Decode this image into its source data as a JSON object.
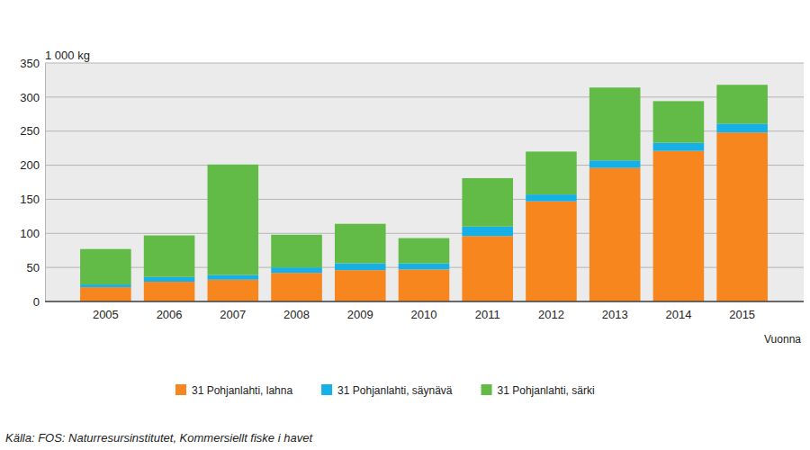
{
  "chart_data": {
    "type": "bar",
    "stacked": true,
    "y_label": "1 000 kg",
    "x_label": "Vuonna",
    "source": "Källa: FOS: Naturresursinstitutet, Kommersiellt fiske i havet",
    "categories": [
      "2005",
      "2006",
      "2007",
      "2008",
      "2009",
      "2010",
      "2011",
      "2012",
      "2013",
      "2014",
      "2015"
    ],
    "series": [
      {
        "name": "31 Pohjanlahti, lahna",
        "color": "#f7861e",
        "values": [
          21,
          29,
          32,
          42,
          46,
          47,
          96,
          147,
          196,
          221,
          248
        ]
      },
      {
        "name": "31 Pohjanlahti, säynävä",
        "color": "#17b0e6",
        "values": [
          4,
          7,
          7,
          8,
          10,
          9,
          14,
          10,
          11,
          12,
          13
        ]
      },
      {
        "name": "31 Pohjanlahti, särki",
        "color": "#61bb46",
        "values": [
          52,
          61,
          162,
          48,
          58,
          37,
          71,
          63,
          107,
          61,
          57
        ]
      }
    ],
    "ylim": [
      0,
      350
    ],
    "yticks": [
      0,
      50,
      100,
      150,
      200,
      250,
      300,
      350
    ],
    "grid": true,
    "legend": "bottom"
  }
}
